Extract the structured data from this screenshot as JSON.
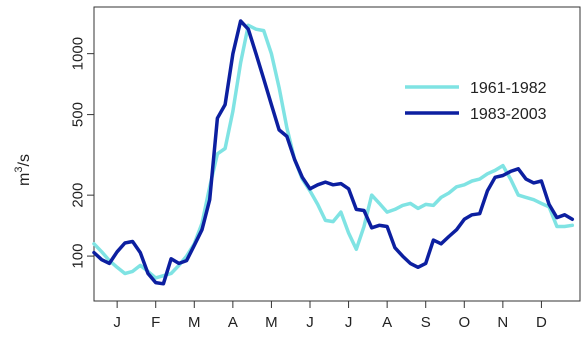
{
  "chart_data": {
    "type": "line",
    "ylabel": "m³/s",
    "ylabel_base": "m",
    "ylabel_sup": "3",
    "ylabel_rest": "/s",
    "y_scale": "log",
    "ylim": [
      60,
      1700
    ],
    "yticks": [
      {
        "value": 100,
        "label": "100"
      },
      {
        "value": 200,
        "label": "200"
      },
      {
        "value": 500,
        "label": "500"
      },
      {
        "value": 1000,
        "label": "1000"
      }
    ],
    "xlim": [
      0,
      12.6
    ],
    "xticks": [
      {
        "value": 0.6,
        "label": "J"
      },
      {
        "value": 1.6,
        "label": "F"
      },
      {
        "value": 2.6,
        "label": "M"
      },
      {
        "value": 3.6,
        "label": "A"
      },
      {
        "value": 4.6,
        "label": "M"
      },
      {
        "value": 5.6,
        "label": "J"
      },
      {
        "value": 6.6,
        "label": "J"
      },
      {
        "value": 7.6,
        "label": "A"
      },
      {
        "value": 8.6,
        "label": "S"
      },
      {
        "value": 9.6,
        "label": "O"
      },
      {
        "value": 10.6,
        "label": "N"
      },
      {
        "value": 11.6,
        "label": "D"
      }
    ],
    "grid": false,
    "legend": "right",
    "series": [
      {
        "name": "1961-1982",
        "color": "#7fe3e3",
        "x": [
          0.0,
          0.2,
          0.4,
          0.6,
          0.8,
          1.0,
          1.2,
          1.4,
          1.6,
          1.8,
          2.0,
          2.2,
          2.4,
          2.6,
          2.8,
          3.0,
          3.2,
          3.4,
          3.6,
          3.8,
          4.0,
          4.2,
          4.4,
          4.6,
          4.8,
          5.0,
          5.2,
          5.4,
          5.6,
          5.8,
          6.0,
          6.2,
          6.4,
          6.6,
          6.8,
          7.0,
          7.2,
          7.4,
          7.6,
          7.8,
          8.0,
          8.2,
          8.4,
          8.6,
          8.8,
          9.0,
          9.2,
          9.4,
          9.6,
          9.8,
          10.0,
          10.2,
          10.4,
          10.6,
          10.8,
          11.0,
          11.2,
          11.4,
          11.6,
          11.8,
          12.0,
          12.2,
          12.4
        ],
        "y": [
          115,
          105,
          95,
          88,
          82,
          84,
          90,
          84,
          78,
          80,
          82,
          90,
          100,
          115,
          145,
          220,
          320,
          340,
          520,
          900,
          1380,
          1320,
          1300,
          1000,
          680,
          430,
          300,
          240,
          210,
          180,
          150,
          148,
          165,
          130,
          108,
          140,
          200,
          182,
          165,
          170,
          178,
          182,
          172,
          180,
          178,
          195,
          205,
          220,
          225,
          235,
          240,
          255,
          265,
          280,
          240,
          200,
          195,
          190,
          182,
          175,
          140,
          140,
          142
        ]
      },
      {
        "name": "1983-2003",
        "color": "#0c1fa0",
        "x": [
          0.0,
          0.2,
          0.4,
          0.6,
          0.8,
          1.0,
          1.2,
          1.4,
          1.6,
          1.8,
          2.0,
          2.2,
          2.4,
          2.6,
          2.8,
          3.0,
          3.2,
          3.4,
          3.6,
          3.8,
          4.0,
          4.2,
          4.4,
          4.6,
          4.8,
          5.0,
          5.2,
          5.4,
          5.6,
          5.8,
          6.0,
          6.2,
          6.4,
          6.6,
          6.8,
          7.0,
          7.2,
          7.4,
          7.6,
          7.8,
          8.0,
          8.2,
          8.4,
          8.6,
          8.8,
          9.0,
          9.2,
          9.4,
          9.6,
          9.8,
          10.0,
          10.2,
          10.4,
          10.6,
          10.8,
          11.0,
          11.2,
          11.4,
          11.6,
          11.8,
          12.0,
          12.2,
          12.4
        ],
        "y": [
          104,
          96,
          92,
          105,
          116,
          118,
          104,
          82,
          74,
          73,
          97,
          92,
          95,
          113,
          135,
          190,
          480,
          560,
          1000,
          1450,
          1320,
          1000,
          750,
          560,
          420,
          390,
          300,
          245,
          215,
          225,
          232,
          225,
          228,
          215,
          170,
          168,
          138,
          142,
          140,
          110,
          100,
          92,
          88,
          92,
          120,
          115,
          125,
          135,
          152,
          160,
          162,
          210,
          245,
          250,
          262,
          270,
          240,
          230,
          235,
          180,
          155,
          160,
          152
        ]
      }
    ]
  }
}
